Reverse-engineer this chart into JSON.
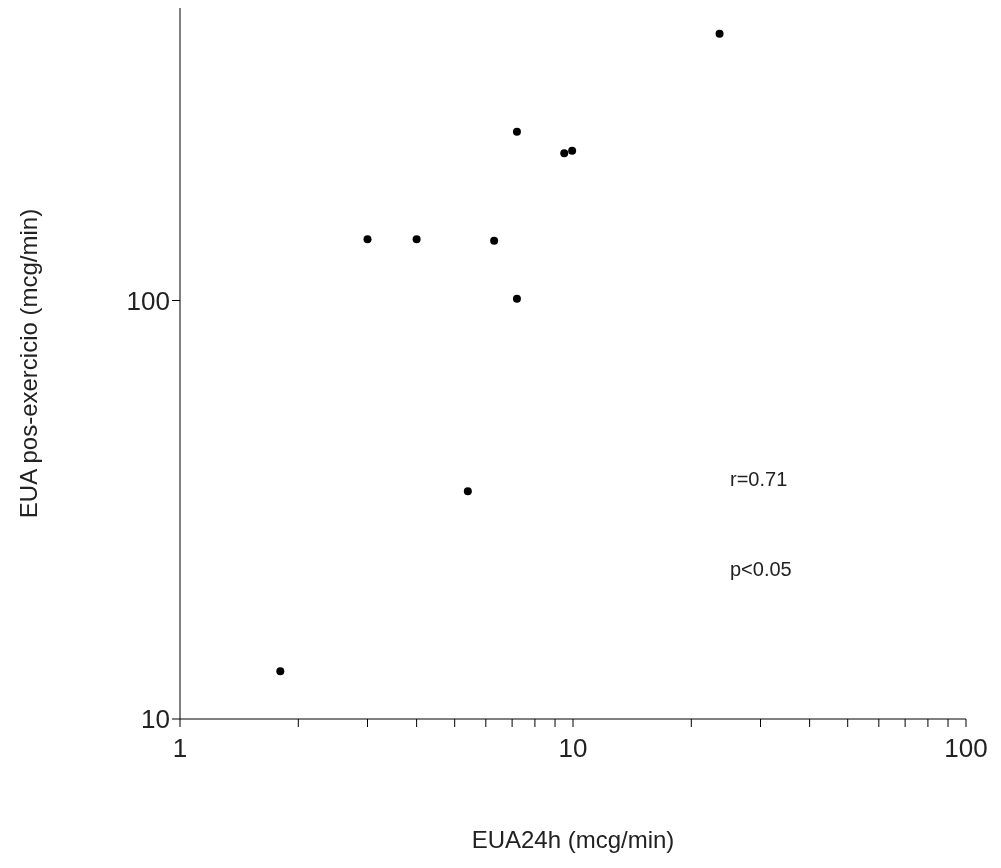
{
  "chart_data": {
    "type": "scatter",
    "xlabel": "EUA24h  (mcg/min)",
    "ylabel": "EUA  pos-exercicio  (mcg/min)",
    "log": "xy",
    "marker": "circle",
    "annotations": [
      "r=0.71",
      "p<0.05"
    ],
    "xlim": [
      1,
      100
    ],
    "ylim": [
      10,
      500
    ],
    "xticks": [
      1,
      {
        "value": 2,
        "label": null
      },
      {
        "value": 3,
        "label": null
      },
      {
        "value": 4,
        "label": null
      },
      {
        "value": 5,
        "label": null
      },
      {
        "value": 6,
        "label": null
      },
      {
        "value": 7,
        "label": null
      },
      {
        "value": 8,
        "label": null
      },
      {
        "value": 9,
        "label": null
      },
      10,
      {
        "value": 20,
        "label": null
      },
      {
        "value": 30,
        "label": null
      },
      {
        "value": 40,
        "label": null
      },
      {
        "value": 50,
        "label": null
      },
      {
        "value": 60,
        "label": null
      },
      {
        "value": 70,
        "label": null
      },
      {
        "value": 80,
        "label": null
      },
      {
        "value": 90,
        "label": null
      },
      100
    ],
    "yticks": [
      10,
      100
    ],
    "series": [
      {
        "color": "#000000",
        "x": [
          1.8,
          3.0,
          4.0,
          6.3,
          5.4,
          7.2,
          7.2,
          9.5,
          9.95,
          23.6
        ],
        "values": [
          13,
          140,
          140,
          139,
          35,
          253,
          101,
          225,
          228,
          434
        ]
      }
    ]
  }
}
